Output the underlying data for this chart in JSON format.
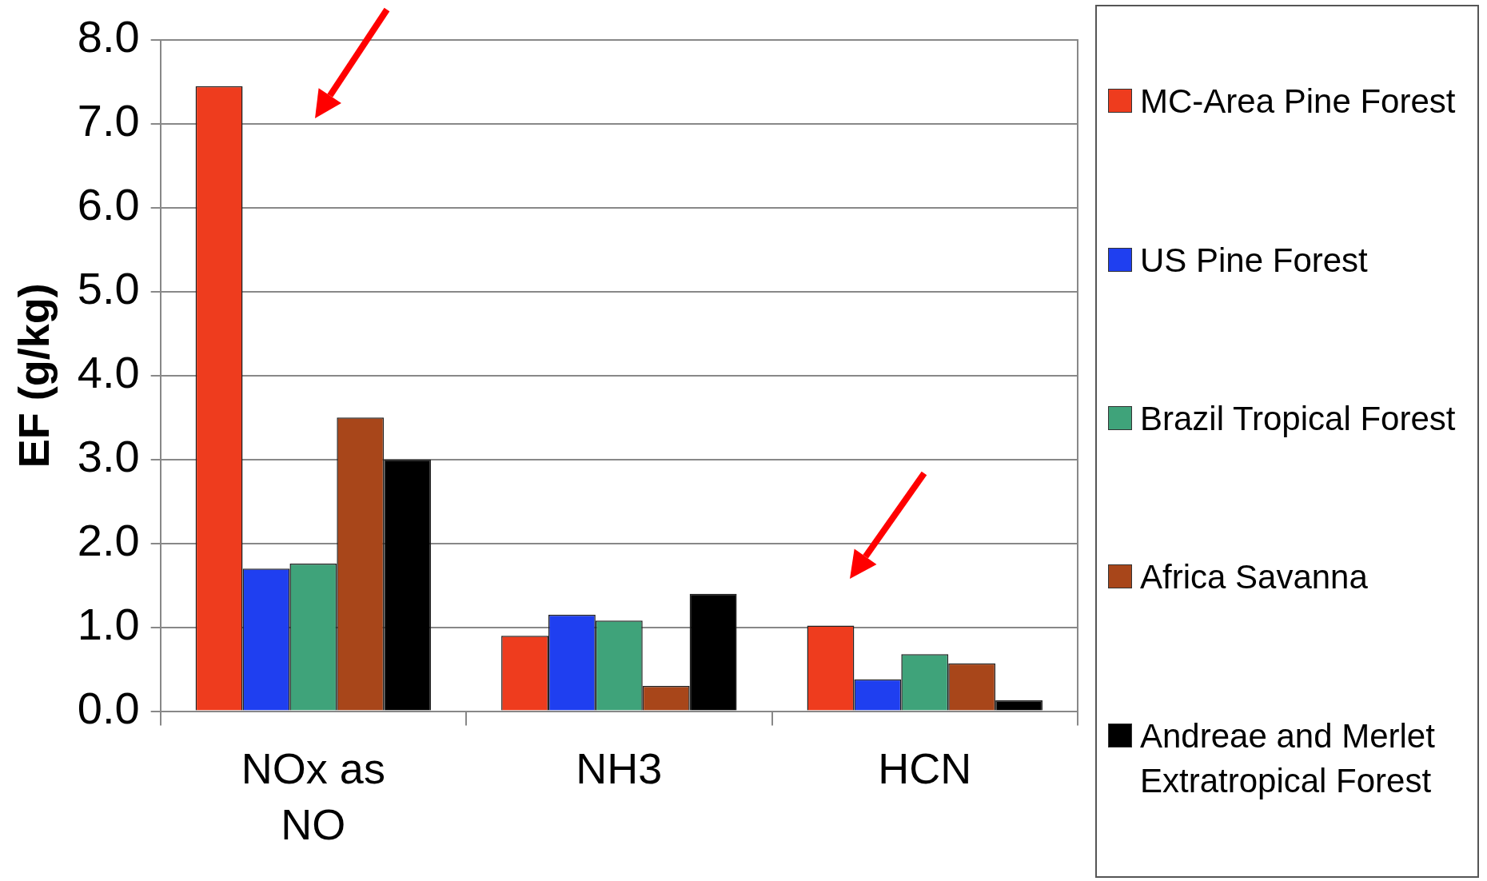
{
  "chart_data": {
    "type": "bar",
    "ylabel": "EF (g/kg)",
    "categories": [
      "NOx as NO",
      "NH3",
      "HCN"
    ],
    "series": [
      {
        "name": "MC-Area Pine Forest",
        "color": "#ee3c1e",
        "values": [
          7.45,
          0.9,
          1.02
        ]
      },
      {
        "name": "US Pine Forest",
        "color": "#1f3ff0",
        "values": [
          1.7,
          1.15,
          0.38
        ]
      },
      {
        "name": "Brazil Tropical Forest",
        "color": "#3fa37a",
        "values": [
          1.76,
          1.08,
          0.68
        ]
      },
      {
        "name": "Africa Savanna",
        "color": "#a8461a",
        "values": [
          3.5,
          0.3,
          0.57
        ]
      },
      {
        "name": "Andreae and Merlet Extratropical Forest",
        "color": "#000000",
        "values": [
          3.0,
          1.4,
          0.13
        ]
      }
    ],
    "ylim": [
      0,
      8
    ],
    "yticks": [
      {
        "value": 0,
        "label": "0.0"
      },
      {
        "value": 1,
        "label": "1.0"
      },
      {
        "value": 2,
        "label": "2.0"
      },
      {
        "value": 3,
        "label": "3.0"
      },
      {
        "value": 4,
        "label": "4.0"
      },
      {
        "value": 5,
        "label": "5.0"
      },
      {
        "value": 6,
        "label": "6.0"
      },
      {
        "value": 7,
        "label": "7.0"
      },
      {
        "value": 8,
        "label": "8.0"
      }
    ],
    "grid": "y",
    "legend": "right"
  }
}
